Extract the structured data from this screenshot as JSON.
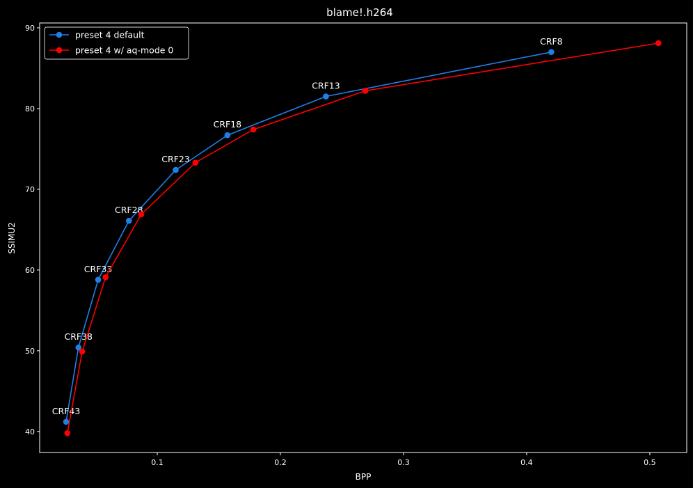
{
  "chart_data": {
    "type": "line",
    "title": "blame!.h264",
    "xlabel": "BPP",
    "ylabel": "SSIMU2",
    "xlim": [
      0.0045,
      0.53
    ],
    "ylim": [
      37.4,
      90.6
    ],
    "xticks": [
      0.1,
      0.2,
      0.3,
      0.4,
      0.5
    ],
    "xtick_labels": [
      "0.1",
      "0.2",
      "0.3",
      "0.4",
      "0.5"
    ],
    "yticks": [
      40,
      50,
      60,
      70,
      80,
      90
    ],
    "ytick_labels": [
      "40",
      "50",
      "60",
      "70",
      "80",
      "90"
    ],
    "grid": false,
    "legend_position": "top-left",
    "background": "#000000",
    "series": [
      {
        "name": "preset 4 default",
        "color": "#1f7fe8",
        "marker": "circle",
        "points": [
          {
            "x": 0.026,
            "y": 41.2,
            "label": "CRF43"
          },
          {
            "x": 0.036,
            "y": 50.4,
            "label": "CRF38"
          },
          {
            "x": 0.052,
            "y": 58.8,
            "label": "CRF33"
          },
          {
            "x": 0.077,
            "y": 66.1,
            "label": "CRF28"
          },
          {
            "x": 0.115,
            "y": 72.4,
            "label": "CRF23"
          },
          {
            "x": 0.157,
            "y": 76.7,
            "label": "CRF18"
          },
          {
            "x": 0.237,
            "y": 81.5,
            "label": "CRF13"
          },
          {
            "x": 0.42,
            "y": 87.0,
            "label": "CRF8"
          }
        ]
      },
      {
        "name": "preset 4 w/ aq-mode 0",
        "color": "#ff0000",
        "marker": "circle",
        "points": [
          {
            "x": 0.027,
            "y": 39.8
          },
          {
            "x": 0.039,
            "y": 49.9
          },
          {
            "x": 0.058,
            "y": 59.1
          },
          {
            "x": 0.087,
            "y": 66.9
          },
          {
            "x": 0.131,
            "y": 73.3
          },
          {
            "x": 0.178,
            "y": 77.4
          },
          {
            "x": 0.269,
            "y": 82.2
          },
          {
            "x": 0.507,
            "y": 88.1
          }
        ]
      }
    ]
  }
}
